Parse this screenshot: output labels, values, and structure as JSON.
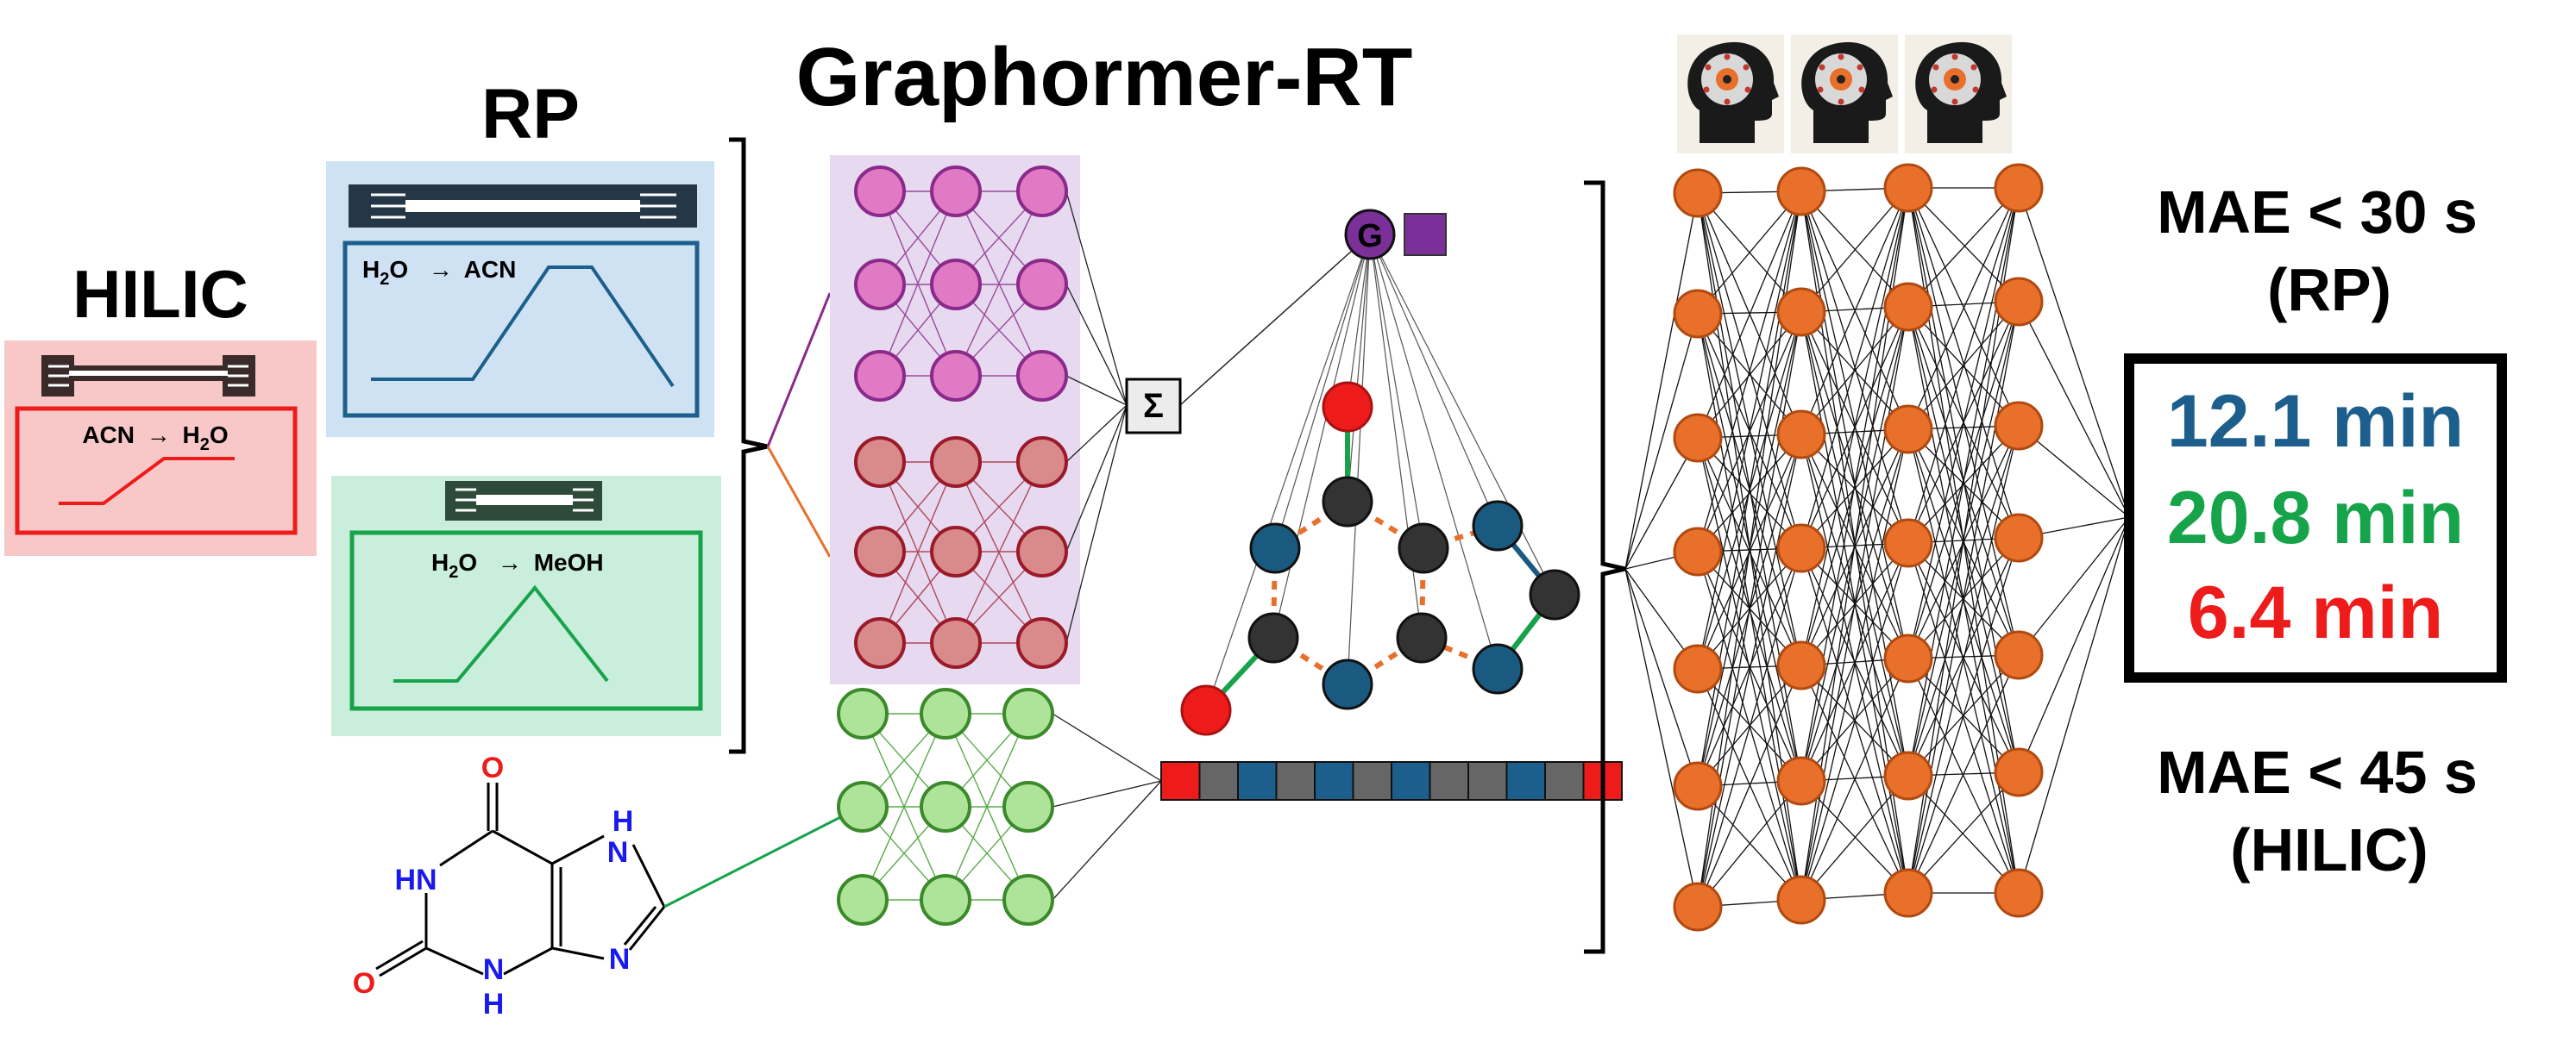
{
  "title": "Graphormer-RT",
  "hilic": {
    "label": "HILIC",
    "gradient_from": "ACN",
    "gradient_to": "H",
    "gradient_to_sub": "2",
    "gradient_to_tail": "O",
    "arrow": "→",
    "panel_color": "#f8c8c8",
    "accent": "#ee1b1b"
  },
  "rp": {
    "label": "RP",
    "blue_from": "H",
    "blue_from_sub": "2",
    "blue_from_tail": "O",
    "blue_to": "ACN",
    "green_from": "H",
    "green_from_sub": "2",
    "green_from_tail": "O",
    "green_to": "MeOH",
    "arrow": "→",
    "blue_panel_color": "#cfe2f3",
    "blue_accent": "#1c5f8c",
    "green_panel_color": "#c9eedb",
    "green_accent": "#16a34a"
  },
  "molecule": {
    "atoms": [
      "O",
      "HN",
      "N",
      "H",
      "O",
      "N",
      "H",
      "N"
    ],
    "o_color": "#ee1b1b",
    "n_color": "#1a1aee"
  },
  "sum_symbol": "Σ",
  "graph_token": "G",
  "results": {
    "mae_rp": "MAE < 30 s",
    "rp_label": "(RP)",
    "mae_hilic": "MAE < 45 s",
    "hilic_label": "(HILIC)",
    "values": [
      {
        "text": "12.1 min",
        "color": "#1c5f8c"
      },
      {
        "text": "20.8 min",
        "color": "#16a34a"
      },
      {
        "text": "6.4 min",
        "color": "#ee1b1b"
      }
    ]
  },
  "icons": [
    "brain-head-icon",
    "brain-head-icon",
    "brain-head-icon"
  ],
  "colors": {
    "pink_node": "#e07ac4",
    "red_node": "#d98a8a",
    "green_node": "#aee39a",
    "orange_node": "#e8702a",
    "graph_purple": "#7a2f99",
    "graph_dark": "#333333",
    "graph_blue": "#1b5a80",
    "graph_red": "#ee1b1b",
    "attention_panel": "#e6d9f0"
  }
}
